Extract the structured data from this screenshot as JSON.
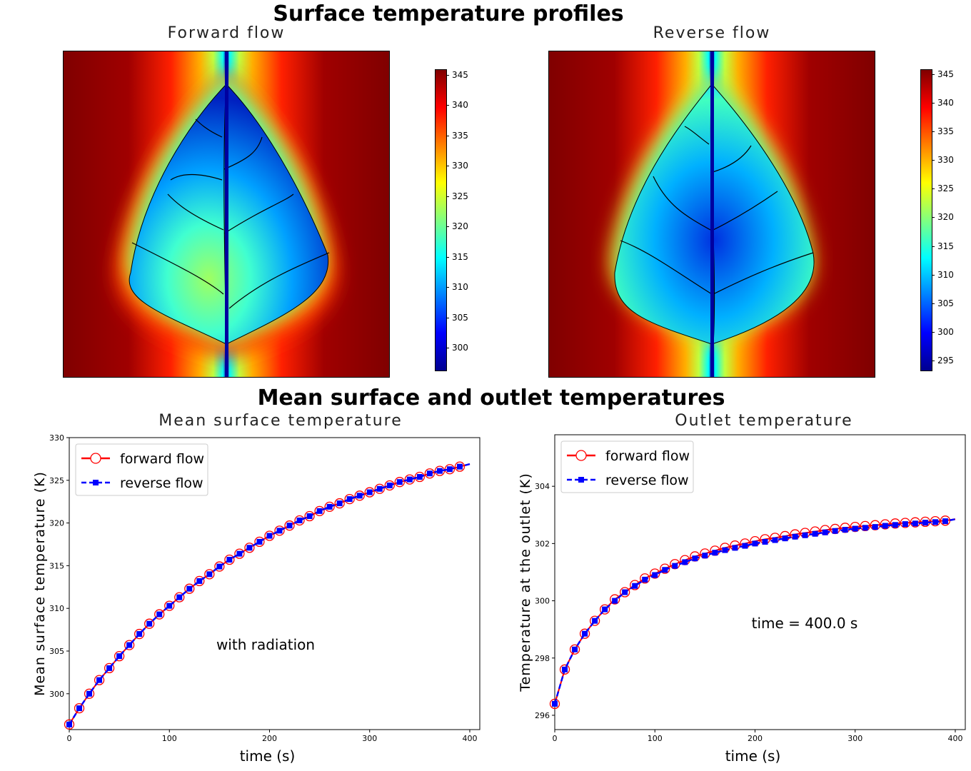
{
  "titles": {
    "top": "Surface temperature profiles",
    "bottom": "Mean surface and outlet temperatures"
  },
  "heatmaps": [
    {
      "title": "Forward flow",
      "colorbar_ticks": [
        "345",
        "340",
        "335",
        "330",
        "325",
        "320",
        "315",
        "310",
        "305",
        "300"
      ],
      "colorbar_range": [
        296.5,
        346
      ]
    },
    {
      "title": "Reverse flow",
      "colorbar_ticks": [
        "345",
        "340",
        "335",
        "330",
        "325",
        "320",
        "315",
        "310",
        "305",
        "300",
        "295"
      ],
      "colorbar_range": [
        293.5,
        346
      ]
    }
  ],
  "chart_data": [
    {
      "type": "line",
      "title": "Mean surface temperature",
      "xlabel": "time (s)",
      "ylabel": "Mean surface temperature (K)",
      "xlim": [
        0,
        410
      ],
      "ylim": [
        295.8,
        330
      ],
      "xticks": [
        "0",
        "100",
        "200",
        "300",
        "400"
      ],
      "yticks": [
        "300",
        "305",
        "310",
        "315",
        "320",
        "325",
        "330"
      ],
      "annotation": "with radiation",
      "legend": "top-left",
      "grid": false,
      "x": [
        0,
        10,
        20,
        30,
        40,
        50,
        60,
        70,
        80,
        90,
        100,
        110,
        120,
        130,
        140,
        150,
        160,
        170,
        180,
        190,
        200,
        210,
        220,
        230,
        240,
        250,
        260,
        270,
        280,
        290,
        300,
        310,
        320,
        330,
        340,
        350,
        360,
        370,
        380,
        390,
        400
      ],
      "series": [
        {
          "name": "forward flow",
          "color": "#ff0000",
          "style": "solid-open-circle",
          "values": [
            296.4,
            298.3,
            300.0,
            301.6,
            303.0,
            304.4,
            305.7,
            307.0,
            308.2,
            309.3,
            310.3,
            311.3,
            312.3,
            313.2,
            314.0,
            314.9,
            315.7,
            316.4,
            317.1,
            317.8,
            318.5,
            319.1,
            319.7,
            320.3,
            320.8,
            321.4,
            321.9,
            322.3,
            322.8,
            323.2,
            323.6,
            324.0,
            324.4,
            324.8,
            325.1,
            325.4,
            325.8,
            326.1,
            326.3,
            326.6,
            326.9
          ]
        },
        {
          "name": "reverse flow",
          "color": "#0000ff",
          "style": "dashed-square",
          "values": [
            296.4,
            298.3,
            300.0,
            301.6,
            303.0,
            304.4,
            305.7,
            307.0,
            308.2,
            309.3,
            310.3,
            311.3,
            312.3,
            313.2,
            314.0,
            314.9,
            315.7,
            316.4,
            317.1,
            317.8,
            318.5,
            319.1,
            319.7,
            320.3,
            320.8,
            321.4,
            321.9,
            322.3,
            322.8,
            323.2,
            323.6,
            324.0,
            324.4,
            324.8,
            325.1,
            325.4,
            325.8,
            326.1,
            326.3,
            326.6,
            326.9
          ]
        }
      ]
    },
    {
      "type": "line",
      "title": "Outlet temperature",
      "xlabel": "time (s)",
      "ylabel": "Temperature at the outlet (K)",
      "xlim": [
        0,
        410
      ],
      "ylim": [
        295.5,
        305.8
      ],
      "xticks": [
        "0",
        "100",
        "200",
        "300",
        "400"
      ],
      "yticks": [
        "296",
        "298",
        "300",
        "302",
        "304"
      ],
      "annotation": "time = 400.0 s",
      "legend": "top-left",
      "grid": false,
      "x": [
        0,
        10,
        20,
        30,
        40,
        50,
        60,
        70,
        80,
        90,
        100,
        110,
        120,
        130,
        140,
        150,
        160,
        170,
        180,
        190,
        200,
        210,
        220,
        230,
        240,
        250,
        260,
        270,
        280,
        290,
        300,
        310,
        320,
        330,
        340,
        350,
        360,
        370,
        380,
        390,
        400
      ],
      "series": [
        {
          "name": "forward flow",
          "color": "#ff0000",
          "style": "solid-open-circle",
          "values": [
            296.4,
            297.6,
            298.3,
            298.85,
            299.3,
            299.7,
            300.05,
            300.3,
            300.55,
            300.78,
            300.95,
            301.12,
            301.28,
            301.42,
            301.55,
            301.65,
            301.75,
            301.85,
            301.93,
            302.0,
            302.08,
            302.15,
            302.2,
            302.26,
            302.32,
            302.37,
            302.42,
            302.47,
            302.51,
            302.55,
            302.58,
            302.61,
            302.64,
            302.67,
            302.7,
            302.72,
            302.74,
            302.76,
            302.78,
            302.8,
            302.85
          ]
        },
        {
          "name": "reverse flow",
          "color": "#0000ff",
          "style": "dashed-square",
          "values": [
            296.4,
            297.6,
            298.3,
            298.85,
            299.3,
            299.7,
            300.0,
            300.3,
            300.52,
            300.74,
            300.9,
            301.08,
            301.22,
            301.35,
            301.48,
            301.58,
            301.68,
            301.77,
            301.85,
            301.92,
            302.0,
            302.06,
            302.12,
            302.18,
            302.24,
            302.29,
            302.34,
            302.39,
            302.44,
            302.48,
            302.52,
            302.55,
            302.58,
            302.62,
            302.65,
            302.68,
            302.7,
            302.73,
            302.75,
            302.78,
            302.85
          ]
        }
      ]
    }
  ]
}
